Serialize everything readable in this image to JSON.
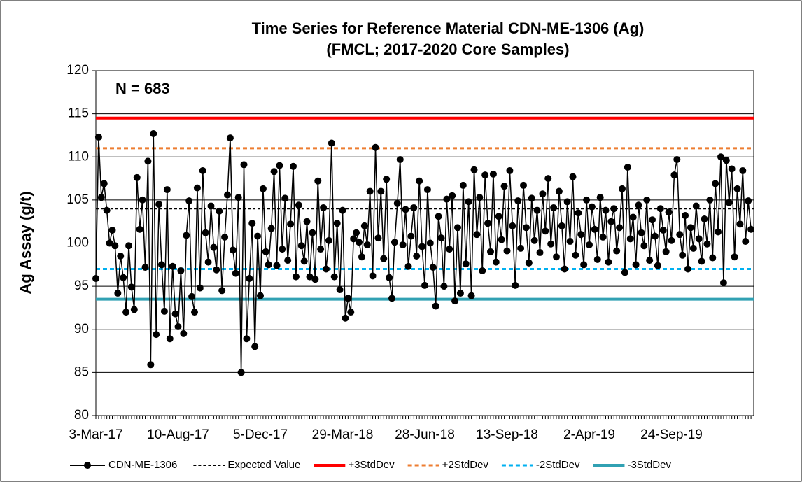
{
  "chart_data": {
    "type": "line",
    "title": "Time Series for Reference Material CDN-ME-1306 (Ag)",
    "subtitle": "(FMCL; 2017-2020 Core Samples)",
    "y_label": "Ag Assay (g/t)",
    "annotation": "N = 683",
    "ylim": [
      80,
      120
    ],
    "yticks": [
      80,
      85,
      90,
      95,
      100,
      105,
      110,
      115,
      120
    ],
    "grid": true,
    "categories": [
      "3-Mar-17",
      null,
      null,
      null,
      null,
      null,
      null,
      null,
      null,
      null,
      null,
      null,
      null,
      null,
      null,
      null,
      null,
      null,
      null,
      null,
      null,
      null,
      null,
      null,
      null,
      null,
      null,
      null,
      null,
      null,
      "10-Aug-17",
      null,
      null,
      null,
      null,
      null,
      null,
      null,
      null,
      null,
      null,
      null,
      null,
      null,
      null,
      null,
      null,
      null,
      null,
      null,
      null,
      null,
      null,
      null,
      null,
      null,
      null,
      null,
      null,
      null,
      "5-Dec-17",
      null,
      null,
      null,
      null,
      null,
      null,
      null,
      null,
      null,
      null,
      null,
      null,
      null,
      null,
      null,
      null,
      null,
      null,
      null,
      null,
      null,
      null,
      null,
      null,
      null,
      null,
      null,
      null,
      null,
      "29-Mar-18",
      null,
      null,
      null,
      null,
      null,
      null,
      null,
      null,
      null,
      null,
      null,
      null,
      null,
      null,
      null,
      null,
      null,
      null,
      null,
      null,
      null,
      null,
      null,
      null,
      null,
      null,
      null,
      null,
      null,
      "28-Jun-18",
      null,
      null,
      null,
      null,
      null,
      null,
      null,
      null,
      null,
      null,
      null,
      null,
      null,
      null,
      null,
      null,
      null,
      null,
      null,
      null,
      null,
      null,
      null,
      null,
      null,
      null,
      null,
      null,
      null,
      "13-Sep-18",
      null,
      null,
      null,
      null,
      null,
      null,
      null,
      null,
      null,
      null,
      null,
      null,
      null,
      null,
      null,
      null,
      null,
      null,
      null,
      null,
      null,
      null,
      null,
      null,
      null,
      null,
      null,
      null,
      null,
      "2-Apr-19",
      null,
      null,
      null,
      null,
      null,
      null,
      null,
      null,
      null,
      null,
      null,
      null,
      null,
      null,
      null,
      null,
      null,
      null,
      null,
      null,
      null,
      null,
      null,
      null,
      null,
      null,
      null,
      null,
      null,
      "24-Sep-19",
      null,
      null,
      null,
      null,
      null,
      null,
      null,
      null,
      null,
      null,
      null,
      null,
      null,
      null,
      null,
      null,
      null,
      null,
      null,
      null,
      null,
      null,
      null,
      null,
      null,
      null,
      null,
      null,
      null
    ],
    "series": [
      {
        "name": "CDN-ME-1306",
        "color": "#000000",
        "values": [
          95.9,
          112.3,
          105.3,
          106.9,
          103.8,
          100.0,
          101.5,
          99.7,
          94.2,
          98.5,
          96.0,
          92.0,
          99.7,
          94.9,
          92.3,
          107.6,
          101.6,
          105.0,
          97.2,
          109.5,
          85.9,
          112.7,
          89.4,
          104.5,
          97.5,
          92.1,
          106.2,
          88.9,
          97.3,
          91.8,
          90.3,
          96.8,
          89.5,
          100.9,
          104.9,
          93.8,
          92.0,
          106.4,
          94.8,
          108.4,
          101.2,
          97.8,
          104.3,
          99.5,
          96.9,
          103.7,
          94.5,
          100.7,
          105.6,
          112.2,
          99.2,
          96.5,
          105.3,
          85.0,
          109.1,
          88.9,
          95.9,
          102.3,
          88.0,
          100.8,
          93.9,
          106.3,
          99.0,
          97.5,
          101.7,
          108.3,
          97.4,
          109.0,
          99.3,
          105.2,
          98.0,
          102.2,
          108.9,
          96.1,
          104.4,
          99.7,
          97.9,
          102.5,
          96.1,
          101.2,
          95.8,
          107.2,
          99.3,
          104.1,
          97.0,
          100.3,
          111.6,
          96.1,
          102.3,
          94.6,
          103.8,
          91.3,
          93.6,
          92.0,
          100.5,
          101.2,
          100.1,
          98.4,
          102.0,
          99.8,
          106.0,
          96.2,
          111.1,
          100.6,
          106.0,
          98.2,
          107.4,
          96.0,
          93.6,
          100.1,
          104.6,
          109.7,
          99.8,
          103.9,
          97.3,
          100.8,
          104.1,
          98.5,
          107.2,
          99.6,
          95.1,
          106.2,
          100.0,
          97.2,
          92.7,
          103.1,
          100.6,
          95.0,
          105.1,
          99.3,
          105.5,
          93.3,
          101.8,
          94.2,
          106.7,
          97.6,
          104.8,
          93.9,
          108.5,
          101.0,
          105.3,
          96.8,
          107.9,
          102.3,
          99.0,
          108.0,
          97.8,
          103.1,
          100.4,
          106.6,
          99.1,
          108.4,
          102.0,
          95.1,
          104.9,
          99.4,
          106.7,
          101.8,
          97.7,
          105.2,
          100.3,
          103.8,
          98.9,
          105.7,
          101.4,
          107.5,
          99.9,
          104.1,
          98.4,
          106.0,
          102.0,
          97.0,
          104.8,
          100.2,
          107.7,
          98.6,
          103.5,
          101.0,
          97.5,
          105.0,
          99.8,
          104.2,
          101.6,
          98.1,
          105.3,
          100.7,
          103.8,
          97.8,
          102.5,
          104.0,
          99.1,
          101.8,
          106.3,
          96.6,
          108.8,
          100.5,
          103.0,
          97.5,
          104.4,
          101.2,
          99.7,
          105.0,
          98.0,
          102.7,
          100.8,
          97.4,
          104.0,
          101.5,
          99.0,
          103.6,
          100.3,
          107.9,
          109.7,
          101.0,
          98.6,
          103.2,
          97.0,
          101.8,
          99.4,
          104.3,
          100.5,
          97.9,
          102.8,
          99.9,
          105.0,
          98.3,
          106.9,
          101.3,
          110.0,
          95.4,
          109.6,
          104.7,
          108.6,
          98.4,
          106.3,
          102.2,
          108.4,
          100.2,
          104.9,
          101.6
        ]
      }
    ],
    "reference_lines": [
      {
        "name": "Expected Value",
        "value": 104,
        "color": "#000000",
        "dash": "4 3",
        "width": 2
      },
      {
        "name": "+3StdDev",
        "value": 114.5,
        "color": "#ff0000",
        "dash": "none",
        "width": 4
      },
      {
        "name": "+2StdDev",
        "value": 111,
        "color": "#ed7d31",
        "dash": "6 4",
        "width": 3
      },
      {
        "name": "-2StdDev",
        "value": 97,
        "color": "#00b0f0",
        "dash": "6 4",
        "width": 3
      },
      {
        "name": "-3StdDev",
        "value": 93.5,
        "color": "#31a1b3",
        "dash": "none",
        "width": 4
      }
    ]
  }
}
